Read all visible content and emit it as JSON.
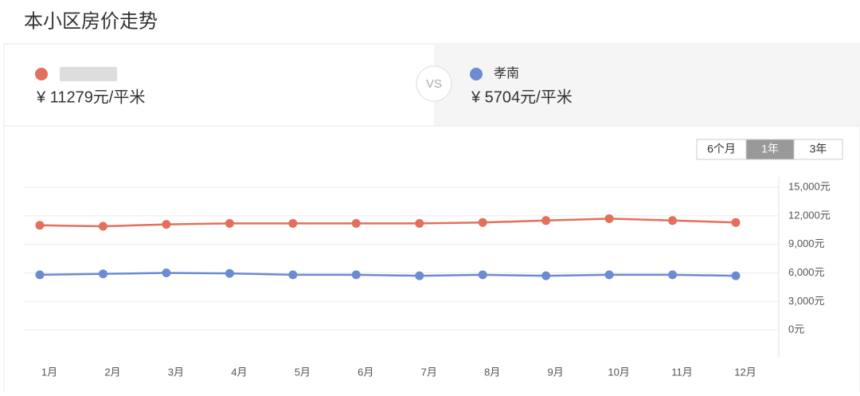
{
  "header": {
    "title": "本小区房价走势"
  },
  "compare": {
    "items": [
      {
        "price": "¥ 11279元/平米"
      },
      {
        "price": "¥ 5704元/平米"
      }
    ],
    "vs": "VS"
  },
  "range_tabs": {
    "options": [
      "6个月",
      "1年",
      "3年"
    ],
    "active": 1
  },
  "chart_data": {
    "type": "line",
    "categories": [
      "1月",
      "2月",
      "3月",
      "4月",
      "5月",
      "6月",
      "7月",
      "8月",
      "9月",
      "10月",
      "11月",
      "12月"
    ],
    "series": [
      {
        "color": "#e3705c",
        "values": [
          11000,
          10900,
          11100,
          11200,
          11200,
          11200,
          11200,
          11300,
          11500,
          11700,
          11500,
          11300
        ]
      },
      {
        "name": "孝南",
        "color": "#6c8bd0",
        "values": [
          5800,
          5900,
          6000,
          5950,
          5800,
          5800,
          5700,
          5800,
          5700,
          5800,
          5800,
          5700
        ]
      }
    ],
    "ylim": [
      -3000,
      15000
    ],
    "yticks": [
      {
        "value": 0,
        "label": "0元"
      },
      {
        "value": 3000,
        "label": "3,000元"
      },
      {
        "value": 6000,
        "label": "6,000元"
      },
      {
        "value": 9000,
        "label": "9,000元"
      },
      {
        "value": 12000,
        "label": "12,000元"
      },
      {
        "value": 15000,
        "label": "15,000元"
      }
    ],
    "grid": true
  }
}
